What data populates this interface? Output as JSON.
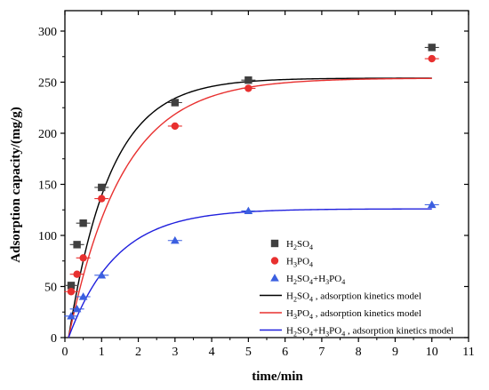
{
  "chart_data": {
    "type": "scatter",
    "xlabel": "time/min",
    "ylabel": "Adsorption capacity/(mg/g)",
    "xlim": [
      0,
      11
    ],
    "ylim": [
      0,
      320
    ],
    "xticks": [
      0,
      1,
      2,
      3,
      4,
      5,
      6,
      7,
      8,
      9,
      10,
      11
    ],
    "yticks": [
      0,
      50,
      100,
      150,
      200,
      250,
      300
    ],
    "grid": false,
    "legend_position": "bottom-right",
    "series": [
      {
        "name": "H2SO4",
        "legend_parts": [
          [
            "H",
            false
          ],
          [
            "2",
            true
          ],
          [
            "SO",
            false
          ],
          [
            "4",
            true
          ]
        ],
        "marker": "square",
        "color": "#404040",
        "x": [
          0.17,
          0.33,
          0.5,
          1,
          3,
          5,
          10
        ],
        "y": [
          51,
          91,
          112,
          147,
          230,
          252,
          284
        ]
      },
      {
        "name": "H3PO4",
        "legend_parts": [
          [
            "H",
            false
          ],
          [
            "3",
            true
          ],
          [
            "PO",
            false
          ],
          [
            "4",
            true
          ]
        ],
        "marker": "circle",
        "color": "#e8302f",
        "x": [
          0.17,
          0.33,
          0.5,
          1,
          3,
          5,
          10
        ],
        "y": [
          45,
          62,
          78,
          136,
          207,
          244,
          273
        ]
      },
      {
        "name": "H2SO4+H3PO4",
        "legend_parts": [
          [
            "H",
            false
          ],
          [
            "2",
            true
          ],
          [
            "SO",
            false
          ],
          [
            "4",
            true
          ],
          [
            "+H",
            false
          ],
          [
            "3",
            true
          ],
          [
            "PO",
            false
          ],
          [
            "4",
            true
          ]
        ],
        "marker": "triangle",
        "color": "#3b5fe0",
        "x": [
          0.17,
          0.33,
          0.5,
          1,
          3,
          5,
          10
        ],
        "y": [
          21,
          28,
          40,
          61,
          95,
          124,
          130
        ]
      }
    ],
    "fits": [
      {
        "name": "H2SO4 , adsorption kinetics model",
        "legend_parts": [
          [
            "H",
            false
          ],
          [
            "2",
            true
          ],
          [
            "SO",
            false
          ],
          [
            "4",
            true
          ],
          [
            " , adsorption kinetics model",
            false
          ]
        ],
        "color": "#000000",
        "qe": 254,
        "k": 0.88,
        "t0": 0.1
      },
      {
        "name": "H3PO4 , adsorption kinetics model",
        "legend_parts": [
          [
            "H",
            false
          ],
          [
            "3",
            true
          ],
          [
            "PO",
            false
          ],
          [
            "4",
            true
          ],
          [
            " , adsorption kinetics model",
            false
          ]
        ],
        "color": "#e8302f",
        "qe": 254,
        "k": 0.68,
        "t0": 0.1
      },
      {
        "name": "H2SO4+H3PO4 , adsorption kinetics model",
        "legend_parts": [
          [
            "H",
            false
          ],
          [
            "2",
            true
          ],
          [
            "SO",
            false
          ],
          [
            "4",
            true
          ],
          [
            "+H",
            false
          ],
          [
            "3",
            true
          ],
          [
            "PO",
            false
          ],
          [
            "4",
            true
          ],
          [
            " , adsorption kinetics model",
            false
          ]
        ],
        "color": "#2020dd",
        "qe": 126,
        "k": 0.77,
        "t0": 0.1
      }
    ]
  }
}
